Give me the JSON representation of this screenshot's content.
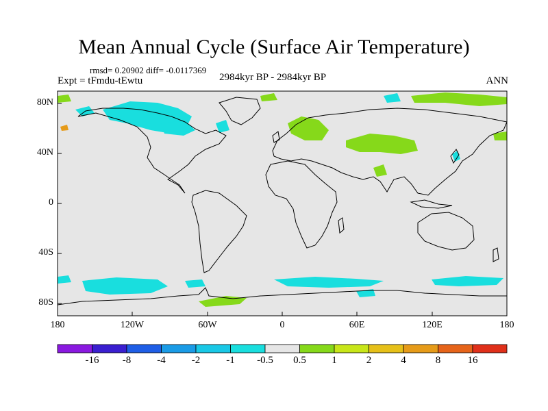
{
  "title": "Mean Annual Cycle (Surface Air Temperature)",
  "stats": "rmsd= 0.20902 diff= -0.0117369",
  "expt": "Expt = tFmdu-tEwtu",
  "period": "2984kyr BP - 2984kyr BP",
  "season": "ANN",
  "map": {
    "ocean_color": "#e6e6e6",
    "coastline_color": "#000000",
    "lat_ticks": [
      "80N",
      "40N",
      "0",
      "40S",
      "80S"
    ],
    "lon_ticks": [
      "180",
      "120W",
      "60W",
      "0",
      "60E",
      "120E",
      "180"
    ]
  },
  "colorbar": {
    "colors": [
      "#8a19e0",
      "#3a1fd0",
      "#1f5ee6",
      "#1a9be6",
      "#19c8e6",
      "#19dede",
      "#e6e6e6",
      "#86d91a",
      "#c8e619",
      "#e6c019",
      "#e69b19",
      "#e6641a",
      "#e0301a"
    ],
    "labels": [
      "-16",
      "-8",
      "-4",
      "-2",
      "-1",
      "-0.5",
      "0.5",
      "1",
      "2",
      "4",
      "8",
      "16"
    ]
  }
}
